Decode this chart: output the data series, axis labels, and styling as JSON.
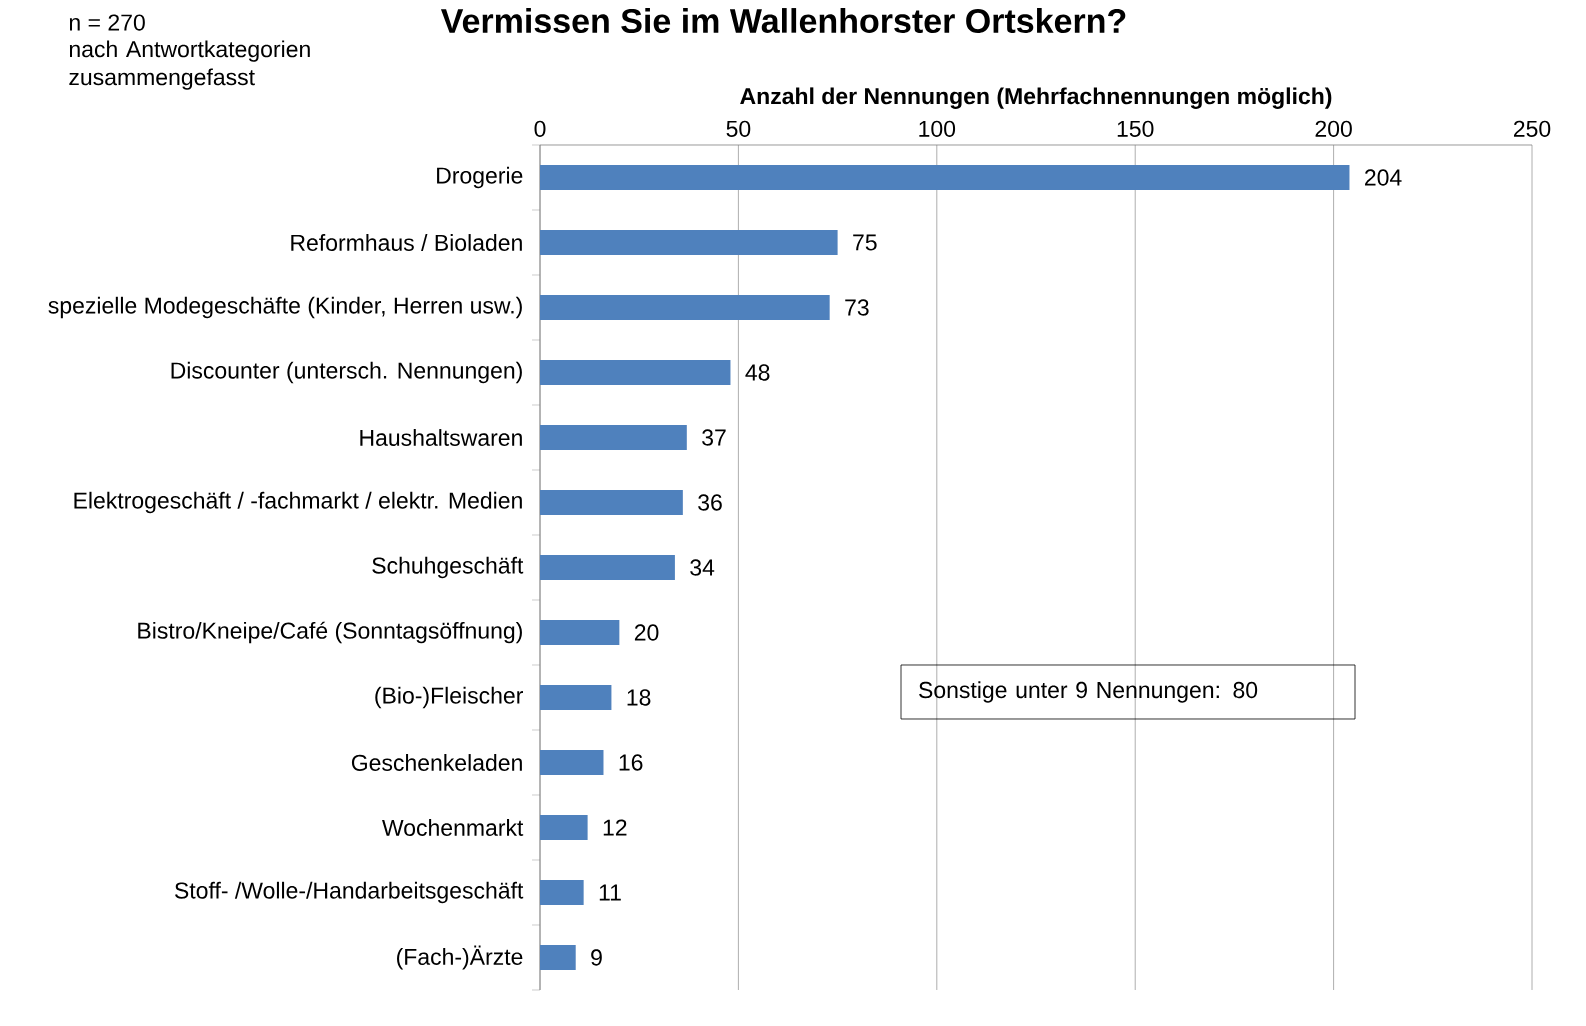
{
  "chart_data": {
    "type": "bar",
    "orientation": "horizontal",
    "title": "Vermissen Sie im Wallenhorster Ortskern?",
    "xlabel": "Anzahl der Nennungen (Mehrfachnennungen möglich)",
    "categories": [
      "Drogerie",
      "Reformhaus / Bioladen",
      "spezielle Modegeschäfte (Kinder, Herren usw.)",
      "Discounter (untersch. Nennungen)",
      "Haushaltswaren",
      "Elektrogeschäft / -fachmarkt / elektr. Medien",
      "Schuhgeschäft",
      "Bistro/Kneipe/Café (Sonntagsöffnung)",
      "(Bio-)Fleischer",
      "Geschenkeladen",
      "Wochenmarkt",
      "Stoff- /Wolle-/Handarbeitsgeschäft",
      "(Fach-)Ärzte"
    ],
    "values": [
      204,
      75,
      73,
      48,
      37,
      36,
      34,
      20,
      18,
      16,
      12,
      11,
      9
    ],
    "color": "#4f81bd",
    "data_labels": true,
    "grid": "x",
    "xlim": [
      0,
      250
    ],
    "xticks": [
      0,
      50,
      100,
      150,
      200,
      250
    ],
    "annotations": [
      "n = 270",
      "nach Antwortkategorien zusammengefasst",
      "Sonstige  unter 9 Nennungen:  80"
    ]
  }
}
